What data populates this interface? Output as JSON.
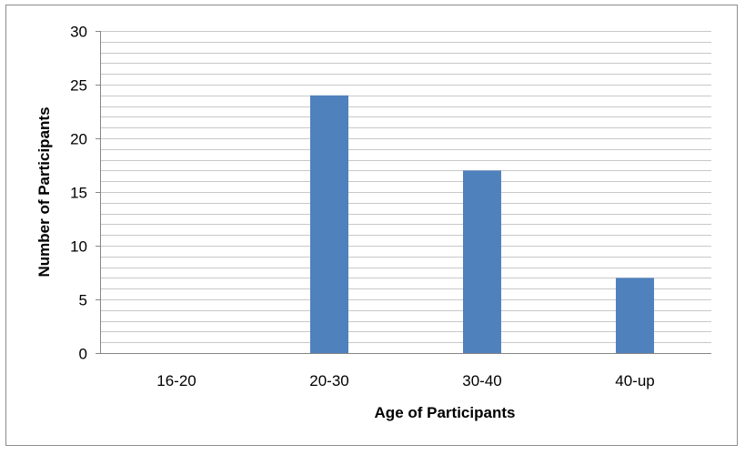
{
  "chart_data": {
    "type": "bar",
    "title": "",
    "xlabel": "Age of Participants",
    "ylabel": "Number  of Participants",
    "categories": [
      "16-20",
      "20-30",
      "30-40",
      "40-up"
    ],
    "values": [
      0,
      24,
      17,
      7
    ],
    "ylim": [
      0,
      30
    ],
    "yticks": [
      "0",
      "5",
      "10",
      "15",
      "20",
      "25",
      "30"
    ],
    "ytick_values": [
      0,
      5,
      10,
      15,
      20,
      25,
      30
    ],
    "minor_grid_step": 1,
    "grid": true,
    "legend": "none",
    "colors": {
      "bar": "#4f81bd",
      "grid": "#c8c8c8",
      "axis": "#868686",
      "frame": "#8c8c8c"
    }
  }
}
